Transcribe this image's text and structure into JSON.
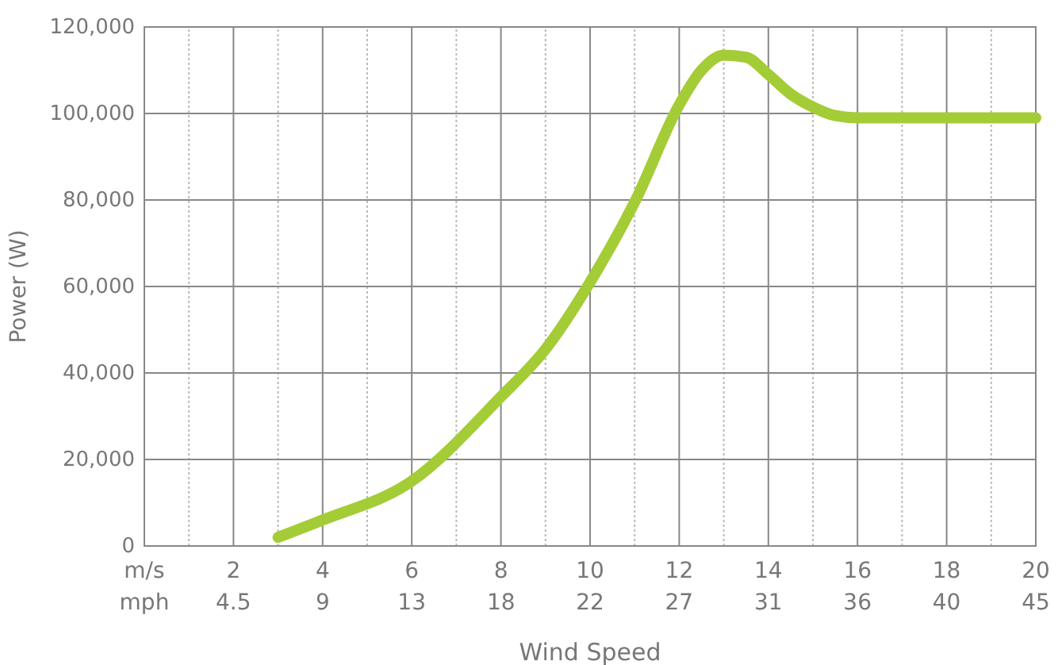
{
  "chart_data": {
    "type": "line",
    "xlabel": "Wind Speed",
    "ylabel": "Power (W)",
    "x": [
      3,
      4,
      6,
      8,
      9,
      10,
      11,
      12,
      12.5,
      13,
      13.5,
      14,
      14.5,
      15,
      15.5,
      16,
      20
    ],
    "series": [
      {
        "color": "#a4cc36",
        "values": [
          2000,
          6000,
          15000,
          34500,
          45500,
          61000,
          79500,
          102000,
          110000,
          113500,
          113000,
          109000,
          104500,
          101500,
          99500,
          99000,
          99000
        ]
      }
    ],
    "xlim": [
      0,
      20
    ],
    "ylim": [
      0,
      120000
    ],
    "xticks": [
      {
        "value": 0,
        "label": "m/s"
      },
      {
        "value": 1,
        "label": null
      },
      2,
      {
        "value": 3,
        "label": null
      },
      4,
      {
        "value": 5,
        "label": null
      },
      6,
      {
        "value": 7,
        "label": null
      },
      8,
      {
        "value": 9,
        "label": null
      },
      10,
      {
        "value": 11,
        "label": null
      },
      12,
      {
        "value": 13,
        "label": null
      },
      14,
      {
        "value": 15,
        "label": null
      },
      16,
      {
        "value": 17,
        "label": null
      },
      18,
      {
        "value": 19,
        "label": null
      },
      20
    ],
    "x2lim": [
      0,
      44.74
    ],
    "x2ticks": [
      {
        "value": 0,
        "label": "mph"
      },
      {
        "value": 4.47,
        "label": "4.5"
      },
      {
        "value": 8.95,
        "label": "9"
      },
      {
        "value": 13.42,
        "label": "13"
      },
      {
        "value": 17.9,
        "label": "18"
      },
      {
        "value": 22.37,
        "label": "22"
      },
      {
        "value": 26.84,
        "label": "27"
      },
      {
        "value": 31.32,
        "label": "31"
      },
      {
        "value": 35.79,
        "label": "36"
      },
      {
        "value": 40.26,
        "label": "40"
      },
      {
        "value": 44.74,
        "label": "45"
      }
    ],
    "yticks": [
      0,
      {
        "value": 20000,
        "label": "20,000"
      },
      {
        "value": 40000,
        "label": "40,000"
      },
      {
        "value": 60000,
        "label": "60,000"
      },
      {
        "value": 80000,
        "label": "80,000"
      },
      {
        "value": 100000,
        "label": "100,000"
      },
      {
        "value": 120000,
        "label": "120,000"
      }
    ],
    "grid": true,
    "marker": "none",
    "line_style": "solid"
  }
}
